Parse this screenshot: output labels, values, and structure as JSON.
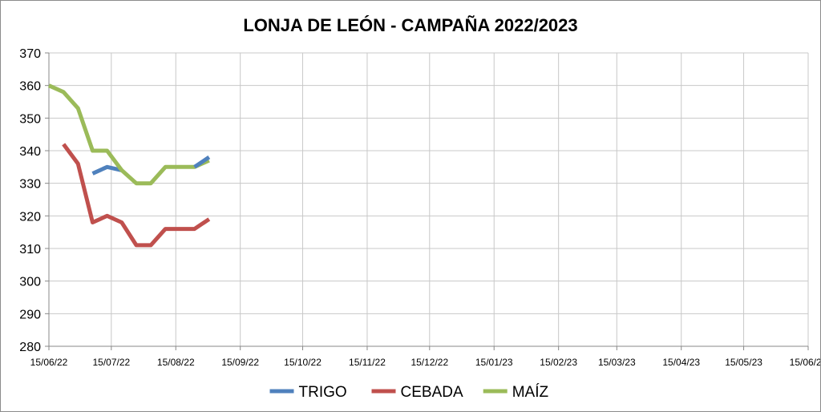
{
  "chart_data": {
    "type": "line",
    "title": "LONJA DE LEÓN - CAMPAÑA 2022/2023",
    "xlabel": "",
    "ylabel": "",
    "ylim": [
      280,
      370
    ],
    "yticks": [
      280,
      290,
      300,
      310,
      320,
      330,
      340,
      350,
      360,
      370
    ],
    "xlim": [
      "2022-06-15",
      "2023-06-15"
    ],
    "xticks": [
      "2022-06-15",
      "2022-07-15",
      "2022-08-15",
      "2022-09-15",
      "2022-10-15",
      "2022-11-15",
      "2022-12-15",
      "2023-01-15",
      "2023-02-15",
      "2023-03-15",
      "2023-04-15",
      "2023-05-15",
      "2023-06-15"
    ],
    "xtick_labels": [
      "15/06/22",
      "15/07/22",
      "15/08/22",
      "15/09/22",
      "15/10/22",
      "15/11/22",
      "15/12/22",
      "15/01/23",
      "15/02/23",
      "15/03/23",
      "15/04/23",
      "15/05/23",
      "15/06/23"
    ],
    "grid": true,
    "legend_position": "bottom",
    "series": [
      {
        "name": "TRIGO",
        "color": "#4F81BD",
        "points": [
          {
            "x": "2022-07-06",
            "y": 333
          },
          {
            "x": "2022-07-13",
            "y": 335
          },
          {
            "x": "2022-07-20",
            "y": 334
          }
        ]
      },
      {
        "name": "CEBADA",
        "color": "#C0504D",
        "points": [
          {
            "x": "2022-06-22",
            "y": 342
          },
          {
            "x": "2022-06-29",
            "y": 336
          },
          {
            "x": "2022-07-06",
            "y": 318
          },
          {
            "x": "2022-07-13",
            "y": 320
          },
          {
            "x": "2022-07-20",
            "y": 318
          },
          {
            "x": "2022-07-27",
            "y": 311
          },
          {
            "x": "2022-08-03",
            "y": 311
          },
          {
            "x": "2022-08-10",
            "y": 316
          },
          {
            "x": "2022-08-17",
            "y": 316
          },
          {
            "x": "2022-08-24",
            "y": 316
          },
          {
            "x": "2022-08-31",
            "y": 319
          }
        ]
      },
      {
        "name": "MAÍZ",
        "color": "#9BBB59",
        "points": [
          {
            "x": "2022-06-15",
            "y": 360
          },
          {
            "x": "2022-06-22",
            "y": 358
          },
          {
            "x": "2022-06-29",
            "y": 353
          },
          {
            "x": "2022-07-06",
            "y": 340
          },
          {
            "x": "2022-07-13",
            "y": 340
          },
          {
            "x": "2022-07-20",
            "y": 334
          },
          {
            "x": "2022-07-27",
            "y": 330
          },
          {
            "x": "2022-08-03",
            "y": 330
          },
          {
            "x": "2022-08-10",
            "y": 335
          },
          {
            "x": "2022-08-17",
            "y": 335
          },
          {
            "x": "2022-08-24",
            "y": 335
          },
          {
            "x": "2022-08-31",
            "y": 337
          }
        ]
      },
      {
        "name": "",
        "color": "#4F81BD",
        "legend": false,
        "points": [
          {
            "x": "2022-08-24",
            "y": 335
          },
          {
            "x": "2022-08-31",
            "y": 338
          }
        ]
      }
    ]
  }
}
